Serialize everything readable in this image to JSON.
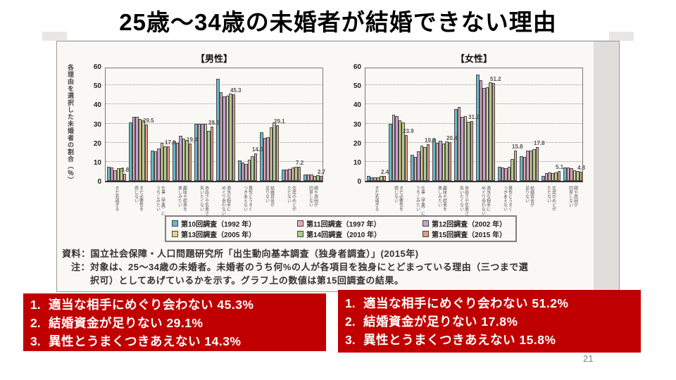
{
  "slide": {
    "title": "25歳～34歳の未婚者が結婚できない理由",
    "page_number": "21"
  },
  "figure_notes": {
    "source": "資料：国立社会保障・人口問題研究所「出生動向基本調査（独身者調査）」(2015年)",
    "note": "注：対象は、25～34歳の未婚者。未婚者のうち何%の人が各項目を独身にとどまっている理由（三つまで選択可）としてあげているかを示す。グラフ上の数値は第15回調査の結果。"
  },
  "chart_data": {
    "type": "bar",
    "unit": "%",
    "ylim": [
      0,
      60
    ],
    "yticks": [
      0,
      10,
      20,
      30,
      40,
      50,
      60
    ],
    "ylabel": "各理由を選択した未婚者の割合（％）",
    "grid": "dotted horizontal lines at 10-50",
    "legend_position": "bottom center",
    "value_labels_note": "グラフ上の数値は第15回調査の結果",
    "categories": [
      [
        "まだ若過ぎる"
      ],
      [
        "まだ必要性を",
        "感じない"
      ],
      [
        "仕事（学業）に",
        "うちこみたい"
      ],
      [
        "趣味や娯楽を",
        "楽しみたい"
      ],
      [
        "自由さや気楽さを",
        "失いたくない"
      ],
      [
        "適当な相手に",
        "めぐり会わない"
      ],
      [
        "異性とうまく",
        "つきあえない"
      ],
      [
        "結婚資金が",
        "足りない"
      ],
      [
        "住居のめどが",
        "たたない"
      ],
      [
        "親や周囲が",
        "同意しない"
      ]
    ],
    "surveys": [
      {
        "name": "第10回調査（1992 年）",
        "color": "#66B8CC"
      },
      {
        "name": "第11回調査（1997 年）",
        "color": "#EBA6B6"
      },
      {
        "name": "第12回調査（2002 年）",
        "color": "#C8A3CF"
      },
      {
        "name": "第13回調査（2005 年）",
        "color": "#E6D487"
      },
      {
        "name": "第14回調査（2010 年）",
        "color": "#ACCC92"
      },
      {
        "name": "第15回調査（2015 年）",
        "color": "#E89B7E"
      }
    ],
    "panels": [
      {
        "title": "【男性】",
        "series": [
          {
            "name": "第10回調査（1992 年）",
            "values": [
              7.5,
              30.5,
              16.0,
              20.5,
              30.0,
              53.5,
              10.5,
              25.5,
              6.0,
              3.5
            ]
          },
          {
            "name": "第11回調査（1997 年）",
            "values": [
              7.0,
              33.5,
              15.5,
              20.0,
              30.0,
              46.5,
              9.5,
              22.5,
              6.0,
              3.5
            ]
          },
          {
            "name": "第12回調査（2002 年）",
            "values": [
              5.5,
              33.5,
              17.0,
              23.5,
              30.0,
              44.0,
              9.0,
              23.0,
              6.2,
              3.5
            ]
          },
          {
            "name": "第13回調査（2005 年）",
            "values": [
              6.5,
              32.5,
              20.0,
              22.0,
              29.8,
              44.5,
              11.0,
              28.0,
              7.0,
              2.5
            ]
          },
          {
            "name": "第14回調査（2010 年）",
            "values": [
              6.5,
              31.5,
              18.0,
              21.5,
              26.0,
              45.5,
              13.0,
              30.5,
              7.5,
              3.0
            ]
          },
          {
            "name": "第15回調査（2015 年）",
            "values": [
              3.8,
              29.5,
              17.9,
              19.4,
              28.5,
              45.3,
              14.3,
              29.1,
              7.2,
              2.7
            ]
          }
        ],
        "value_labels": [
          "3.8",
          "29.5",
          "17.9",
          "19.4",
          "28.5",
          "45.3",
          "14.3",
          "29.1",
          "7.2",
          "2.7"
        ]
      },
      {
        "title": "【女性】",
        "series": [
          {
            "name": "第10回調査（1992 年）",
            "values": [
              2.5,
              30.0,
              13.5,
              22.0,
              37.5,
              55.5,
              7.5,
              13.0,
              2.5,
              7.0
            ]
          },
          {
            "name": "第11回調査（1997 年）",
            "values": [
              2.0,
              34.5,
              12.5,
              20.0,
              38.5,
              52.5,
              7.0,
              12.5,
              4.0,
              7.0
            ]
          },
          {
            "name": "第12回調査（2002 年）",
            "values": [
              2.0,
              34.0,
              15.5,
              21.0,
              33.5,
              48.5,
              6.5,
              16.0,
              4.5,
              6.5
            ]
          },
          {
            "name": "第13回調査（2005 年）",
            "values": [
              2.0,
              31.5,
              18.5,
              19.5,
              34.0,
              49.0,
              7.5,
              16.0,
              4.0,
              5.5
            ]
          },
          {
            "name": "第14回調査（2010 年）",
            "values": [
              2.5,
              30.5,
              17.5,
              20.5,
              31.0,
              51.5,
              11.5,
              16.5,
              4.5,
              5.0
            ]
          },
          {
            "name": "第15回調査（2015 年）",
            "values": [
              2.4,
              23.9,
              19.1,
              20.4,
              31.2,
              51.2,
              15.8,
              17.8,
              5.1,
              4.8
            ]
          }
        ],
        "value_labels": [
          "2.4",
          "23.9",
          "19.1",
          "20.4",
          "31.2",
          "51.2",
          "15.8",
          "17.8",
          "5.1",
          "4.8"
        ]
      }
    ]
  },
  "highlights": {
    "male": {
      "items": [
        {
          "rank": "1.",
          "text": "適当な相手にめぐり会わない 45.3%"
        },
        {
          "rank": "2.",
          "text": "結婚資金が足りない 29.1%"
        },
        {
          "rank": "3.",
          "text": "異性とうまくつきあえない 14.3%"
        }
      ]
    },
    "female": {
      "items": [
        {
          "rank": "1.",
          "text": "適当な相手にめぐり会わない 51.2%"
        },
        {
          "rank": "2.",
          "text": "結婚資金が足りない 17.8%"
        },
        {
          "rank": "3.",
          "text": "異性とうまくつきあえない 15.8%"
        }
      ]
    }
  }
}
